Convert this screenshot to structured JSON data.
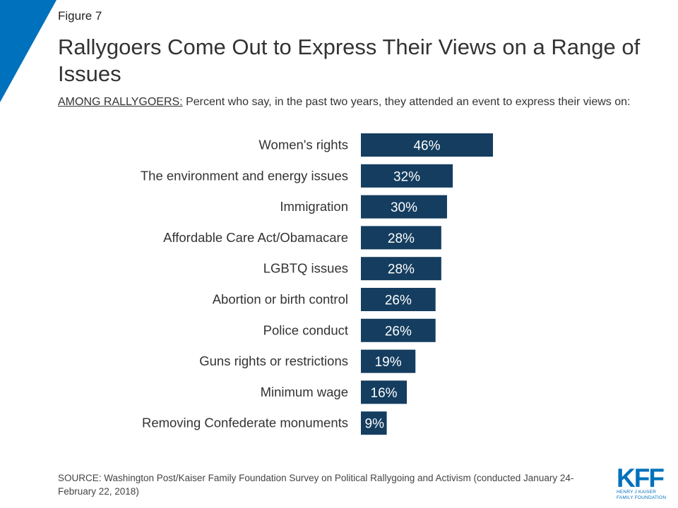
{
  "figure_label": "Figure 7",
  "title": "Rallygoers Come Out to Express Their Views on a Range of Issues",
  "subtitle": {
    "underlined": "AMONG RALLYGOERS:",
    "rest": " Percent who say, in the past two years, they attended an event to express their views on:"
  },
  "source": "SOURCE: Washington Post/Kaiser Family Foundation Survey on Political Rallygoing and Activism (conducted January 24-February 22, 2018)",
  "logo": {
    "main": "KFF",
    "line1": "HENRY J KAISER",
    "line2": "FAMILY FOUNDATION"
  },
  "colors": {
    "bar": "#143d5f",
    "accent": "#0071bc",
    "label_text": "#ffffff"
  },
  "chart_data": {
    "type": "bar",
    "orientation": "horizontal",
    "title": "Rallygoers Come Out to Express Their Views on a Range of Issues",
    "xlabel": "",
    "ylabel": "",
    "xlim": [
      0,
      46
    ],
    "grid": false,
    "legend": "none",
    "categories": [
      "Women's rights",
      "The environment and energy issues",
      "Immigration",
      "Affordable Care Act/Obamacare",
      "LGBTQ issues",
      "Abortion or birth control",
      "Police conduct",
      "Guns rights or restrictions",
      "Minimum wage",
      "Removing Confederate monuments"
    ],
    "values": [
      46,
      32,
      30,
      28,
      28,
      26,
      26,
      19,
      16,
      9
    ],
    "data_labels": [
      "46%",
      "32%",
      "30%",
      "28%",
      "28%",
      "26%",
      "26%",
      "19%",
      "16%",
      "9%"
    ]
  }
}
